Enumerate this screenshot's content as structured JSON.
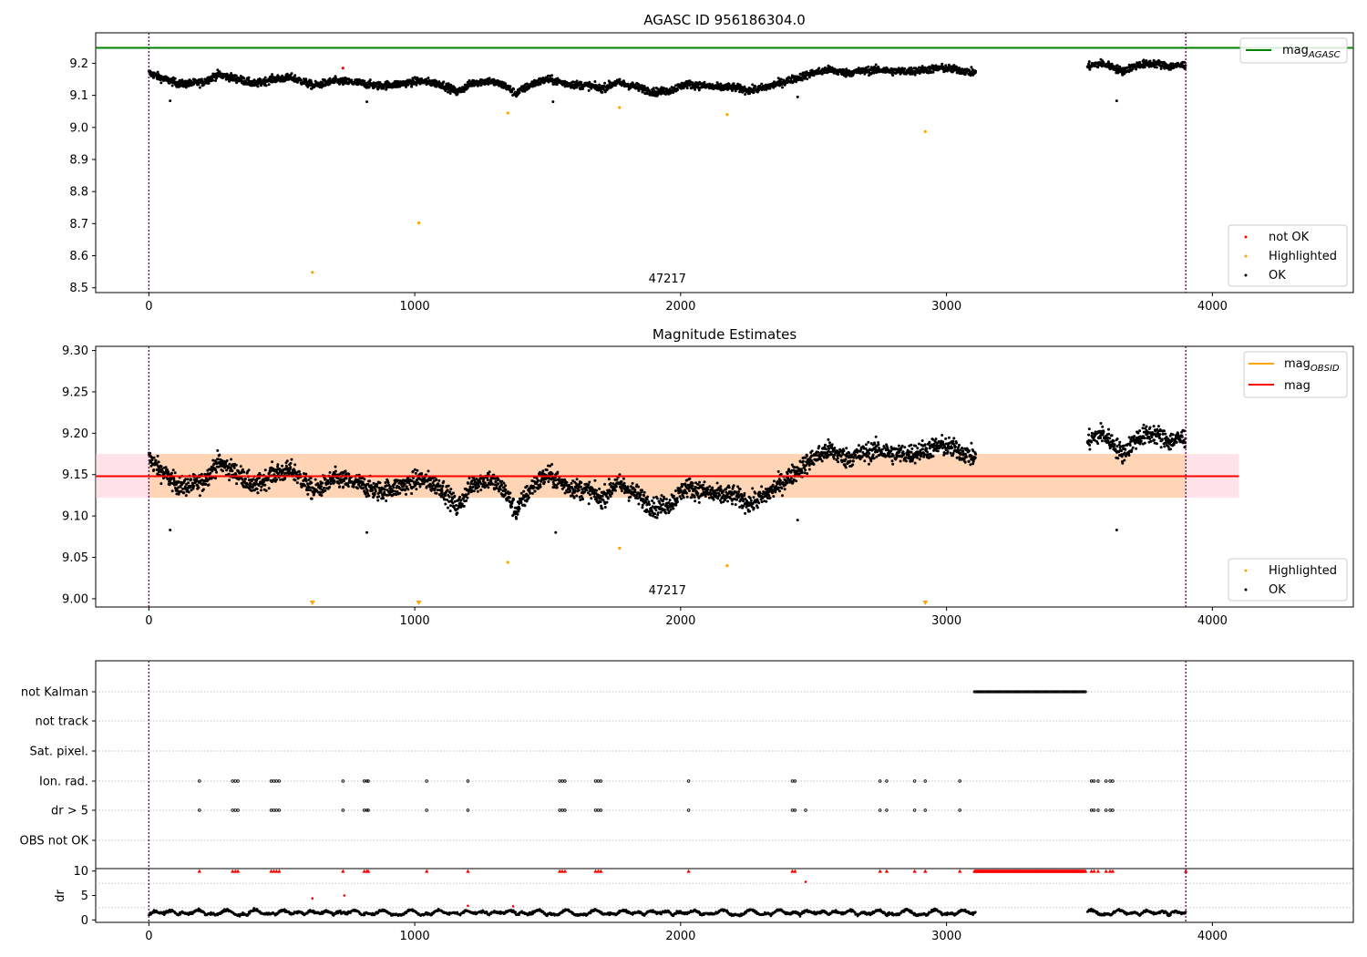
{
  "chart_data": [
    {
      "type": "scatter",
      "title": "AGASC ID 956186304.0",
      "xlim": [
        -200,
        4530
      ],
      "ylim": [
        8.485,
        9.295
      ],
      "x_ticks": [
        0,
        1000,
        2000,
        3000,
        4000
      ],
      "y_ticks": [
        8.5,
        8.6,
        8.7,
        8.8,
        8.9,
        9.0,
        9.1,
        9.2
      ],
      "y_tick_labels": [
        "8.5",
        "8.6",
        "8.7",
        "8.8",
        "8.9",
        "9.0",
        "9.1",
        "9.2"
      ],
      "vlines": [
        0,
        3900
      ],
      "annotation": {
        "text": "47217",
        "x": 1950,
        "y": 8.505
      },
      "hline": {
        "name": "mag_AGASC",
        "label_main": "mag",
        "label_sub": "AGASC",
        "y": 9.248,
        "color": "#008000"
      },
      "trend_segments": [
        {
          "x": [
            0,
            60,
            120,
            200,
            260,
            340,
            400,
            460,
            540,
            620,
            700,
            780,
            860,
            940,
            1020,
            1100,
            1160,
            1220,
            1280,
            1340,
            1380,
            1440,
            1500,
            1580,
            1660,
            1700,
            1760,
            1840,
            1900,
            1960,
            2020,
            2080,
            2140,
            2200,
            2260,
            2320,
            2380,
            2440,
            2500,
            2560,
            2620,
            2680,
            2740,
            2800,
            2860,
            2920,
            2980,
            3040,
            3110
          ],
          "y": [
            9.17,
            9.15,
            9.135,
            9.14,
            9.165,
            9.15,
            9.135,
            9.15,
            9.155,
            9.13,
            9.145,
            9.14,
            9.13,
            9.135,
            9.145,
            9.135,
            9.11,
            9.14,
            9.145,
            9.13,
            9.105,
            9.135,
            9.15,
            9.135,
            9.13,
            9.12,
            9.14,
            9.125,
            9.11,
            9.115,
            9.135,
            9.13,
            9.125,
            9.125,
            9.115,
            9.125,
            9.14,
            9.155,
            9.17,
            9.18,
            9.17,
            9.175,
            9.18,
            9.175,
            9.175,
            9.18,
            9.185,
            9.18,
            9.17
          ]
        },
        {
          "x": [
            3530,
            3580,
            3620,
            3660,
            3720,
            3780,
            3840,
            3900
          ],
          "y": [
            9.19,
            9.2,
            9.19,
            9.175,
            9.195,
            9.2,
            9.19,
            9.195
          ]
        }
      ],
      "noise": 0.012,
      "series": [
        {
          "name": "not OK",
          "color": "#ff0000",
          "points": [
            [
              730,
              9.185
            ]
          ]
        },
        {
          "name": "Highlighted",
          "color": "#ffa500",
          "points": [
            [
              615,
              8.548
            ],
            [
              1015,
              8.702
            ],
            [
              1350,
              9.045
            ],
            [
              1770,
              9.062
            ],
            [
              2175,
              9.04
            ],
            [
              2920,
              8.987
            ]
          ]
        },
        {
          "name": "OK",
          "color": "#000000",
          "outliers": [
            [
              80,
              9.083
            ],
            [
              820,
              9.08
            ],
            [
              1520,
              9.08
            ],
            [
              2440,
              9.095
            ],
            [
              3640,
              9.083
            ]
          ]
        }
      ],
      "legend": {
        "upper_right": [
          "mag_AGASC"
        ],
        "lower_right": [
          "not OK",
          "Highlighted",
          "OK"
        ]
      }
    },
    {
      "type": "scatter",
      "title": "Magnitude Estimates",
      "xlim": [
        -200,
        4530
      ],
      "ylim": [
        8.99,
        9.305
      ],
      "x_ticks": [
        0,
        1000,
        2000,
        3000,
        4000
      ],
      "y_ticks": [
        9.0,
        9.05,
        9.1,
        9.15,
        9.2,
        9.25,
        9.3
      ],
      "y_tick_labels": [
        "9.00",
        "9.05",
        "9.10",
        "9.15",
        "9.20",
        "9.25",
        "9.30"
      ],
      "vlines": [
        0,
        3900
      ],
      "annotation": {
        "text": "47217",
        "x": 1950,
        "y": 9.003
      },
      "hline": {
        "name": "mag",
        "y": 9.148,
        "color": "#ff0000",
        "x_range": [
          -200,
          4100
        ]
      },
      "band": {
        "y_low": 9.122,
        "y_high": 9.175,
        "x_range": [
          -200,
          4100
        ]
      },
      "obsid_segments": [
        {
          "x": [
            0,
            3900
          ],
          "y": 9.148,
          "y_low": 9.122,
          "y_high": 9.175
        }
      ],
      "series": [
        {
          "name": "Highlighted",
          "color": "#ffa500",
          "points": [
            [
              1350,
              9.044
            ],
            [
              1770,
              9.061
            ],
            [
              2175,
              9.04
            ]
          ],
          "clipped_below_x": [
            615,
            1015,
            2920
          ]
        },
        {
          "name": "OK",
          "color": "#000000",
          "outliers": [
            [
              80,
              9.083
            ],
            [
              820,
              9.08
            ],
            [
              1530,
              9.08
            ],
            [
              2440,
              9.095
            ],
            [
              3640,
              9.083
            ]
          ]
        }
      ],
      "legend": {
        "upper_right": [
          "mag_OBSID",
          "mag"
        ],
        "lower_right": [
          "Highlighted",
          "OK"
        ]
      }
    },
    {
      "type": "scatter",
      "title": "",
      "xlim": [
        -200,
        4530
      ],
      "x_ticks": [
        0,
        1000,
        2000,
        3000,
        4000
      ],
      "vlines": [
        0,
        3900
      ],
      "flag_rows": [
        "not Kalman",
        "not track",
        "Sat. pixel.",
        "Ion. rad.",
        "dr > 5",
        "OBS not OK"
      ],
      "flags": {
        "not Kalman": [
          [
            3105,
            3525
          ]
        ],
        "not track": [],
        "Sat. pixel.": [],
        "Ion. rad.": [
          190,
          315,
          325,
          335,
          460,
          470,
          480,
          490,
          730,
          810,
          820,
          825,
          1045,
          1200,
          1545,
          1555,
          1565,
          1680,
          1690,
          1700,
          2030,
          2420,
          2430,
          2750,
          2775,
          2880,
          2920,
          3050,
          3545,
          3555,
          3570,
          3600,
          3615,
          3625
        ],
        "dr > 5": [
          190,
          315,
          325,
          335,
          460,
          470,
          480,
          490,
          730,
          810,
          820,
          825,
          1045,
          1200,
          1545,
          1555,
          1565,
          1680,
          1690,
          1700,
          2030,
          2420,
          2430,
          2470,
          2750,
          2775,
          2880,
          2920,
          3050,
          3545,
          3555,
          3570,
          3600,
          3615,
          3625
        ],
        "OBS not OK": []
      },
      "dr_panel": {
        "ylabel": "dr",
        "y_ticks": [
          0,
          5,
          10
        ],
        "ylim": [
          -0.5,
          10.5
        ],
        "segments": [
          [
            0,
            3110
          ],
          [
            3530,
            3900
          ]
        ],
        "baseline": 1.0,
        "amplitude": 0.9,
        "red_points": [
          [
            615,
            4.4
          ],
          [
            735,
            5.0
          ],
          [
            1200,
            2.9
          ],
          [
            1370,
            2.8
          ],
          [
            2470,
            7.8
          ]
        ],
        "capped_x": [
          190,
          315,
          325,
          335,
          460,
          470,
          480,
          490,
          730,
          810,
          820,
          825,
          1045,
          1200,
          1545,
          1555,
          1565,
          1680,
          1690,
          1700,
          2030,
          2420,
          2430,
          2750,
          2775,
          2880,
          2920,
          3050,
          3545,
          3555,
          3570,
          3600,
          3615,
          3625,
          3900
        ],
        "capped_range": [
          3105,
          3525
        ]
      }
    }
  ]
}
